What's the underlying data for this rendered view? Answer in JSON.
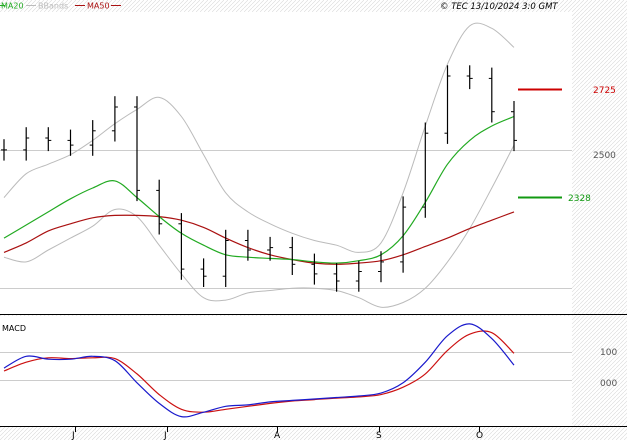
{
  "header": {
    "legend": [
      {
        "label": "MA20",
        "color": "#22aa22"
      },
      {
        "label": "BBands",
        "color": "#bbbbbb"
      },
      {
        "label": "MA50",
        "color": "#aa1111"
      }
    ],
    "source": "© TEC 13/10/2024 3:0 GMT"
  },
  "price_panel": {
    "y_ticks": [
      "2500"
    ],
    "levels": [
      {
        "label": "2725",
        "color": "#cc0000"
      },
      {
        "label": "2328",
        "color": "#119911"
      }
    ]
  },
  "macd_panel": {
    "title": "MACD",
    "y_ticks": [
      "100",
      "000"
    ]
  },
  "x_axis": {
    "labels": [
      "J",
      "J",
      "A",
      "S",
      "O"
    ]
  },
  "colors": {
    "ma20": "#22aa22",
    "ma50": "#aa1111",
    "bbands": "#bbbbbb",
    "price": "#000000",
    "macd": "#1a1acc",
    "signal": "#cc1111",
    "resistance": "#cc0000",
    "support": "#119911"
  },
  "chart_data": [
    {
      "type": "line",
      "title": "",
      "series": [
        {
          "name": "MA20",
          "values": [
            2110,
            2165,
            2220,
            2275,
            2320,
            2350,
            2280,
            2200,
            2130,
            2080,
            2040,
            2030,
            2025,
            2020,
            2010,
            2005,
            2015,
            2040,
            2120,
            2260,
            2420,
            2520,
            2580,
            2620
          ]
        },
        {
          "name": "MA50",
          "values": [
            2050,
            2090,
            2140,
            2170,
            2195,
            2205,
            2205,
            2200,
            2185,
            2155,
            2110,
            2070,
            2040,
            2020,
            2005,
            2000,
            2005,
            2015,
            2040,
            2075,
            2110,
            2150,
            2185,
            2220
          ]
        },
        {
          "name": "BBands upper",
          "values": [
            2280,
            2380,
            2420,
            2460,
            2520,
            2590,
            2650,
            2700,
            2620,
            2460,
            2300,
            2220,
            2170,
            2130,
            2100,
            2080,
            2050,
            2090,
            2300,
            2580,
            2840,
            3000,
            2990,
            2910
          ]
        },
        {
          "name": "BBands lower",
          "values": [
            2030,
            2010,
            2060,
            2110,
            2160,
            2230,
            2200,
            2080,
            1960,
            1860,
            1850,
            1880,
            1890,
            1900,
            1900,
            1890,
            1860,
            1820,
            1840,
            1900,
            2010,
            2150,
            2320,
            2500
          ]
        },
        {
          "name": "Price",
          "values": [
            2480,
            2530,
            2520,
            2500,
            2560,
            2660,
            2310,
            2170,
            1980,
            1950,
            2100,
            2060,
            2070,
            2000,
            1960,
            1930,
            1970,
            2010,
            2240,
            2550,
            2790,
            2780,
            2640,
            2520
          ]
        }
      ],
      "ylim": [
        1800,
        3050
      ]
    },
    {
      "type": "line",
      "title": "MACD",
      "series": [
        {
          "name": "MACD",
          "values": [
            50,
            90,
            80,
            80,
            90,
            75,
            0,
            -70,
            -115,
            -100,
            -80,
            -75,
            -65,
            -60,
            -55,
            -50,
            -45,
            -35,
            0,
            70,
            160,
            200,
            150,
            60
          ]
        },
        {
          "name": "Signal",
          "values": [
            40,
            70,
            85,
            82,
            85,
            82,
            30,
            -40,
            -90,
            -100,
            -90,
            -80,
            -70,
            -62,
            -57,
            -52,
            -48,
            -40,
            -15,
            30,
            110,
            165,
            170,
            100
          ]
        }
      ],
      "ylim": [
        -140,
        220
      ]
    }
  ]
}
